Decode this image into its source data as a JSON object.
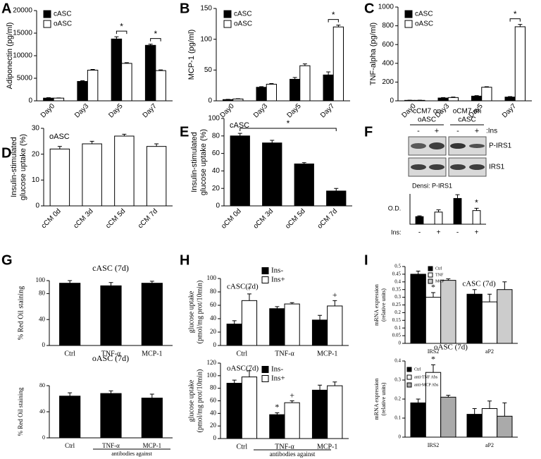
{
  "chart_data": [
    {
      "type": "bar",
      "panel": "A",
      "ylabel": "Adiponectin (pg/ml)",
      "categories": [
        "Day0",
        "Day3",
        "Day5",
        "Day7"
      ],
      "series": [
        {
          "name": "cASC",
          "color": "#000000",
          "values": [
            600,
            4300,
            13700,
            12300
          ],
          "errors": [
            100,
            150,
            500,
            250
          ]
        },
        {
          "name": "oASC",
          "color": "#ffffff",
          "values": [
            600,
            6800,
            8300,
            6700
          ],
          "errors": [
            50,
            150,
            150,
            150
          ]
        }
      ],
      "ylim": [
        0,
        20000
      ],
      "yticks": [
        0,
        5000,
        10000,
        15000,
        20000
      ],
      "legend": "upper left",
      "bracket_labels": [
        null,
        null,
        "*",
        "*"
      ]
    },
    {
      "type": "bar",
      "panel": "B",
      "ylabel": "MCP-1 (pg/ml)",
      "categories": [
        "Day0",
        "Day3",
        "Day5",
        "Day7"
      ],
      "series": [
        {
          "name": "cASC",
          "color": "#000000",
          "values": [
            2,
            22,
            35,
            42
          ],
          "errors": [
            0.5,
            1,
            3,
            5
          ]
        },
        {
          "name": "oASC",
          "color": "#ffffff",
          "values": [
            3,
            27,
            57,
            120
          ],
          "errors": [
            0.5,
            1,
            3,
            3
          ]
        }
      ],
      "ylim": [
        0,
        150
      ],
      "yticks": [
        0,
        50,
        100,
        150
      ],
      "legend": "upper left",
      "bracket_labels": [
        null,
        null,
        null,
        "*"
      ]
    },
    {
      "type": "bar",
      "panel": "C",
      "ylabel": "TNF-alpha (pg/ml)",
      "categories": [
        "Day0",
        "Day3",
        "Day5",
        "Day7"
      ],
      "series": [
        {
          "name": "cASC",
          "color": "#000000",
          "values": [
            5,
            30,
            50,
            40
          ],
          "errors": [
            2,
            5,
            5,
            5
          ]
        },
        {
          "name": "oASC",
          "color": "#ffffff",
          "values": [
            5,
            35,
            145,
            790
          ],
          "errors": [
            2,
            5,
            5,
            25
          ]
        }
      ],
      "ylim": [
        0,
        1000
      ],
      "yticks": [
        0,
        200,
        400,
        600,
        800,
        1000
      ],
      "legend": "upper left",
      "bracket_labels": [
        null,
        null,
        null,
        "*"
      ]
    },
    {
      "type": "bar",
      "panel": "D",
      "title": "oASC",
      "ylabel": [
        "Insulin-stimulated",
        "glucose uptake (%)"
      ],
      "categories": [
        "cCM 0d",
        "cCM 3d",
        "cCM 5d",
        "cCM 7d"
      ],
      "values": [
        22,
        24,
        27,
        23
      ],
      "errors": [
        1,
        1,
        0.7,
        1
      ],
      "color": "#ffffff",
      "ylim": [
        0,
        30
      ],
      "yticks": [
        0,
        10,
        20,
        30
      ]
    },
    {
      "type": "bar",
      "panel": "E",
      "title": "cASC",
      "ylabel": [
        "Insulin-stimulated",
        "glucose uptake (%)"
      ],
      "categories": [
        "oCM 0d",
        "oCM 3d",
        "oCM 5d",
        "oCM 7d"
      ],
      "values": [
        80,
        72,
        48,
        17
      ],
      "errors": [
        3,
        3,
        1.5,
        3
      ],
      "color": "#000000",
      "ylim": [
        0,
        100
      ],
      "yticks": [
        0,
        20,
        40,
        60,
        80,
        100
      ],
      "span_label": "*"
    },
    {
      "type": "bar",
      "panel": "F",
      "blot": {
        "groups": [
          [
            "cCM7 on",
            "oASC"
          ],
          [
            "oCM7 on",
            "cASC"
          ]
        ],
        "lanes": [
          "-",
          "+",
          "-",
          "+"
        ],
        "lane_label": ":Ins",
        "bands": [
          "P-IRS1",
          "IRS1"
        ]
      },
      "title": "Densi: P-IRS1",
      "ylabel": "O.D.",
      "xlabel": "Ins:",
      "categories": [
        "-",
        "+",
        "-",
        "+"
      ],
      "values": [
        0.5,
        0.8,
        1.7,
        0.9
      ],
      "errors": [
        0.05,
        0.15,
        0.25,
        0.15
      ],
      "colors": [
        "#000000",
        "#ffffff",
        "#000000",
        "#ffffff"
      ],
      "annotations": [
        null,
        null,
        null,
        "*"
      ],
      "ylim": [
        0,
        2
      ]
    },
    {
      "type": "bar",
      "panel": "G",
      "title": "cASC (7d)",
      "ylabel": "% Red Oil staining",
      "categories": [
        "Ctrl",
        "TNF-α",
        "MCP-1"
      ],
      "values": [
        96,
        92,
        96
      ],
      "errors": [
        4,
        5,
        3
      ],
      "color": "#000000",
      "ylim": [
        0,
        100
      ],
      "yticks": [
        0,
        40,
        80,
        100
      ]
    },
    {
      "type": "bar",
      "title": "oASC (7d)",
      "ylabel": "% Red Oil staining",
      "xlabel": "antibodies against",
      "categories": [
        "Ctrl",
        "TNF-α",
        "MCP-1"
      ],
      "values": [
        64,
        68,
        61
      ],
      "errors": [
        5,
        4,
        6
      ],
      "color": "#000000",
      "ylim": [
        0,
        80
      ],
      "yticks": [
        0,
        40,
        80
      ]
    },
    {
      "type": "bar",
      "panel": "H",
      "title": "cASC(7d)",
      "ylabel": [
        "glucose uptake",
        "(pmol/mg prot/10min)"
      ],
      "categories": [
        "Ctrl",
        "TNF-α",
        "MCP-1"
      ],
      "series": [
        {
          "name": "Ins-",
          "color": "#000000",
          "values": [
            32,
            55,
            38
          ],
          "errors": [
            5,
            3,
            7
          ],
          "annotations": [
            null,
            null,
            null
          ]
        },
        {
          "name": "Ins+",
          "color": "#ffffff",
          "values": [
            67,
            62,
            59
          ],
          "errors": [
            10,
            2,
            8
          ],
          "annotations": [
            "+",
            null,
            "+"
          ]
        }
      ],
      "ylim": [
        0,
        100
      ],
      "yticks": [
        0,
        20,
        40,
        60,
        80,
        100
      ],
      "legend": "upper right"
    },
    {
      "type": "bar",
      "title": "oASC(7d)",
      "ylabel": [
        "glucose uptake",
        "(pmol/mg prot/10min)"
      ],
      "xlabel": "antibodies against",
      "categories": [
        "Ctrl",
        "TNF-α",
        "MCP-1"
      ],
      "series": [
        {
          "name": "Ins-",
          "color": "#000000",
          "values": [
            88,
            38,
            77
          ],
          "errors": [
            5,
            3,
            8
          ],
          "annotations": [
            null,
            "*",
            null
          ]
        },
        {
          "name": "Ins+",
          "color": "#ffffff",
          "values": [
            98,
            57,
            84
          ],
          "errors": [
            10,
            3,
            6
          ],
          "annotations": [
            null,
            "+",
            null
          ]
        }
      ],
      "ylim": [
        0,
        120
      ],
      "yticks": [
        0,
        20,
        40,
        60,
        80,
        100,
        120
      ],
      "legend": "upper right"
    },
    {
      "type": "bar",
      "panel": "I",
      "title": "cASC (7d)",
      "ylabel": [
        "mRNA expression",
        "(relative units)"
      ],
      "categories": [
        "IRS2",
        "aP2"
      ],
      "series": [
        {
          "name": "Ctrl",
          "color": "#000000",
          "values": [
            0.45,
            0.32
          ],
          "errors": [
            0.02,
            0.03
          ]
        },
        {
          "name": "TNF",
          "color": "#ffffff",
          "values": [
            0.3,
            0.27
          ],
          "errors": [
            0.03,
            0.05
          ],
          "annotations": [
            "*",
            null
          ]
        },
        {
          "name": "MCP",
          "color": "#cccccc",
          "values": [
            0.41,
            0.35
          ],
          "errors": [
            0.01,
            0.05
          ]
        }
      ],
      "ylim": [
        0,
        0.5
      ],
      "yticks": [
        0,
        0.05,
        0.1,
        0.15,
        0.2,
        0.25,
        0.3,
        0.35,
        0.4,
        0.45,
        0.5
      ],
      "legend": "upper left"
    },
    {
      "type": "bar",
      "title": "oASC (7d)",
      "ylabel": [
        "mRNA expression",
        "(relative units)"
      ],
      "categories": [
        "IRS2",
        "aP2"
      ],
      "series": [
        {
          "name": "Ctrl",
          "color": "#000000",
          "values": [
            0.18,
            0.12
          ],
          "errors": [
            0.02,
            0.03
          ]
        },
        {
          "name": "anti-TNF Abs",
          "color": "#ffffff",
          "values": [
            0.34,
            0.15
          ],
          "errors": [
            0.04,
            0.04
          ],
          "annotations": [
            "*",
            null
          ]
        },
        {
          "name": "anti-MCP Abs",
          "color": "#aaaaaa",
          "values": [
            0.21,
            0.11
          ],
          "errors": [
            0.01,
            0.07
          ]
        }
      ],
      "ylim": [
        0,
        0.4
      ],
      "yticks": [
        0,
        0.1,
        0.2,
        0.3,
        0.4
      ],
      "legend": "upper left"
    }
  ]
}
